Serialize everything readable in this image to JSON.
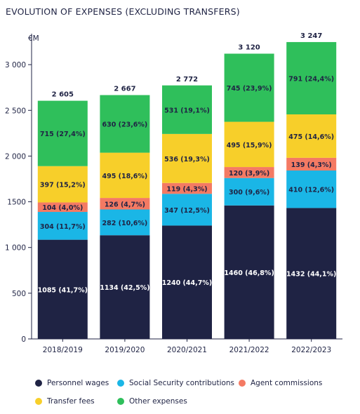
{
  "chart_data": {
    "type": "bar",
    "stacked": true,
    "title": "EVOLUTION OF EXPENSES (EXCLUDING TRANSFERS)",
    "ylabel": "€M",
    "ylim": [
      0,
      3400
    ],
    "yticks": [
      0,
      500,
      1000,
      1500,
      2000,
      2500,
      3000
    ],
    "ytick_labels": [
      "0",
      "500",
      "1 000",
      "1500",
      "2 000",
      "2 500",
      "3 000"
    ],
    "categories": [
      "2018/2019",
      "2019/2020",
      "2020/2021",
      "2021/2022",
      "2022/2023"
    ],
    "totals": [
      2605,
      2667,
      2772,
      3120,
      3247
    ],
    "total_labels": [
      "2 605",
      "2 667",
      "2 772",
      "3 120",
      "3 247"
    ],
    "series": [
      {
        "name": "Personnel wages",
        "color": "#1f2344",
        "label_color": "#ffffff",
        "values": [
          1085,
          1134,
          1240,
          1460,
          1432
        ],
        "labels": [
          "1085 (41,7%)",
          "1134 (42,5%)",
          "1240 (44,7%)",
          "1460 (46,8%)",
          "1432 (44,1%)"
        ]
      },
      {
        "name": "Social Security contributions",
        "color": "#1ab6e6",
        "label_color": "#1f2344",
        "values": [
          304,
          282,
          347,
          300,
          410
        ],
        "labels": [
          "304 (11,7%)",
          "282 (10,6%)",
          "347 (12,5%)",
          "300 (9,6%)",
          "410 (12,6%)"
        ]
      },
      {
        "name": "Agent commissions",
        "color": "#f47a63",
        "label_color": "#1f2344",
        "values": [
          104,
          126,
          119,
          120,
          139
        ],
        "labels": [
          "104 (4,0%)",
          "126 (4,7%)",
          "119 (4,3%)",
          "120 (3,9%)",
          "139 (4,3%)"
        ]
      },
      {
        "name": "Transfer fees",
        "color": "#f7cf2a",
        "label_color": "#1f2344",
        "values": [
          397,
          495,
          536,
          495,
          475
        ],
        "labels": [
          "397 (15,2%)",
          "495 (18,6%)",
          "536 (19,3%)",
          "495 (15,9%)",
          "475 (14,6%)"
        ]
      },
      {
        "name": "Other expenses",
        "color": "#2fbf5b",
        "label_color": "#1f2344",
        "values": [
          715,
          630,
          531,
          745,
          791
        ],
        "labels": [
          "715 (27,4%)",
          "630 (23,6%)",
          "531 (19,1%)",
          "745 (23,9%)",
          "791 (24,4%)"
        ]
      }
    ],
    "legend": {
      "placement": "bottom",
      "rows": [
        [
          "Personnel wages",
          "Social Security contributions",
          "Agent commissions"
        ],
        [
          "Transfer fees",
          "Other expenses"
        ]
      ]
    },
    "grid": false
  }
}
